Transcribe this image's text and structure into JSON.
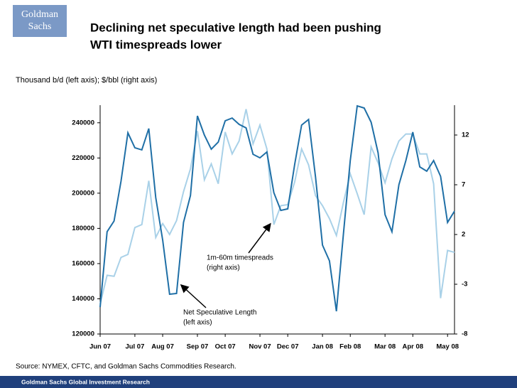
{
  "logo": [
    "Goldman",
    "Sachs"
  ],
  "footer": "Goldman Sachs Global Investment Research",
  "chart_data": {
    "type": "line",
    "title": [
      "Declining net speculative length had been pushing",
      "WTI timespreads lower"
    ],
    "subtitle": "Thousand b/d (left axis); $/bbl (right axis)",
    "source": "Source: NYMEX, CFTC, and Goldman Sachs Commodities Research.",
    "categories": [
      "Jun 07",
      null,
      null,
      null,
      null,
      "Jul 07",
      null,
      null,
      null,
      "Aug 07",
      null,
      null,
      null,
      null,
      "Sep 07",
      null,
      null,
      null,
      "Oct 07",
      null,
      null,
      null,
      null,
      "Nov 07",
      null,
      null,
      null,
      "Dec 07",
      null,
      null,
      null,
      null,
      "Jan 08",
      null,
      null,
      null,
      "Feb 08",
      null,
      null,
      null,
      null,
      "Mar 08",
      null,
      null,
      null,
      "Apr 08",
      null,
      null,
      null,
      null,
      "May 08",
      null
    ],
    "series": [
      {
        "name": "Net Speculative Length",
        "color": "#1f6fa6",
        "axis": "y",
        "values": [
          135300,
          178100,
          184200,
          206800,
          234300,
          225800,
          224600,
          236700,
          197500,
          173300,
          142600,
          143000,
          183400,
          198700,
          243900,
          233000,
          225000,
          229000,
          241100,
          242700,
          239100,
          237100,
          222100,
          220100,
          223400,
          200300,
          190200,
          191100,
          216500,
          238700,
          241900,
          209200,
          170500,
          161600,
          132900,
          176500,
          218500,
          249600,
          248400,
          240300,
          222900,
          187800,
          178100,
          204800,
          218500,
          234700,
          214900,
          212500,
          218500,
          209600,
          183400,
          189800
        ]
      },
      {
        "name": "1m-60m timespreads",
        "color": "#a9d1e8",
        "axis": "y2",
        "values": [
          -5.0,
          -2.1,
          -2.2,
          -0.3,
          0.0,
          2.7,
          3.0,
          7.4,
          1.7,
          3.1,
          2.0,
          3.4,
          6.3,
          8.6,
          12.4,
          7.5,
          9.1,
          7.1,
          12.3,
          10.1,
          11.4,
          14.6,
          11.1,
          13.0,
          10.6,
          3.0,
          4.9,
          5.0,
          7.3,
          10.6,
          9.0,
          5.9,
          4.9,
          3.6,
          1.9,
          5.2,
          8.1,
          6.1,
          4.0,
          10.8,
          9.2,
          7.2,
          9.6,
          11.4,
          12.1,
          12.1,
          10.1,
          10.1,
          7.1,
          -4.4,
          0.4,
          0.2
        ]
      }
    ],
    "ylim": [
      120000,
      250000
    ],
    "yticks": [
      120000,
      140000,
      160000,
      180000,
      200000,
      220000,
      240000
    ],
    "y2lim": [
      -8,
      15
    ],
    "y2ticks": [
      -8,
      -3,
      2,
      7,
      12
    ],
    "grid": false,
    "annotations": [
      {
        "lines": [
          "1m-60m timespreads",
          "(right axis)"
        ],
        "series": 1
      },
      {
        "lines": [
          "Net Speculative Length",
          "(left axis)"
        ],
        "series": 0
      }
    ]
  }
}
